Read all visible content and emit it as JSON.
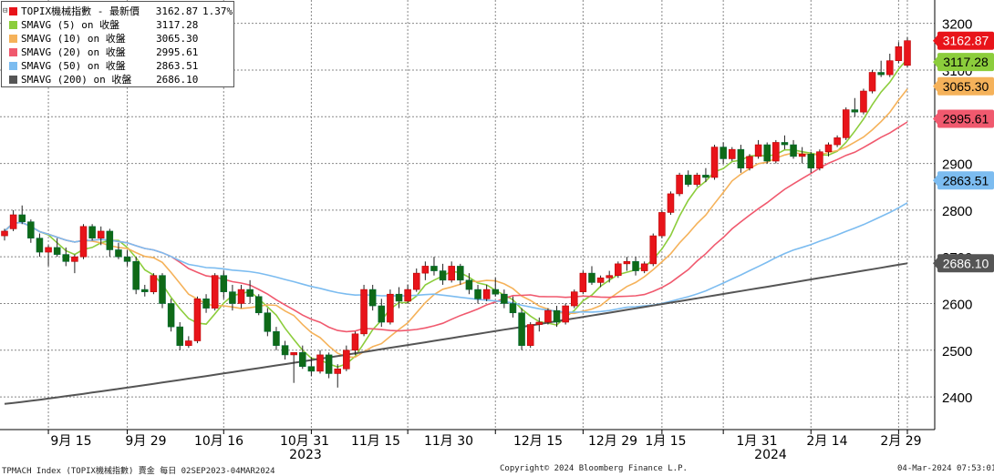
{
  "chart_data": {
    "type": "candlestick+line",
    "legend": [
      {
        "name": "TOPIX機械指數 - 最新價",
        "value": "3162.87",
        "change": "1.37%",
        "color": "#e8141a"
      },
      {
        "name": "SMAVG (5)  on 收盤",
        "value": "3117.28",
        "change": "",
        "color": "#8ccd3c"
      },
      {
        "name": "SMAVG (10)  on 收盤",
        "value": "3065.30",
        "change": "",
        "color": "#f5b25a"
      },
      {
        "name": "SMAVG (20)  on 收盤",
        "value": "2995.61",
        "change": "",
        "color": "#f0596e"
      },
      {
        "name": "SMAVG (50)  on 收盤",
        "value": "2863.51",
        "change": "",
        "color": "#7cbcf0"
      },
      {
        "name": "SMAVG (200)  on 收盤",
        "value": "2686.10",
        "change": "",
        "color": "#555555"
      }
    ],
    "ylim": [
      2330,
      3250
    ],
    "y_ticks": [
      2400,
      2500,
      2600,
      2700,
      2800,
      2900,
      3000,
      3100,
      3200
    ],
    "x_ticks": [
      "9月 15",
      "9月 29",
      "10月 16",
      "10月 31",
      "11月 15",
      "11月 30",
      "12月 15",
      "12月 29",
      "1月 15",
      "1月 31",
      "2月 14",
      "2月 29"
    ],
    "x_year_labels": [
      "2023",
      "2024"
    ],
    "grid": true,
    "right_labels": [
      {
        "value": "3162.87",
        "color": "#e8141a",
        "text_color": "#ffffff"
      },
      {
        "value": "3117.28",
        "color": "#8ccd3c",
        "text_color": "#000000"
      },
      {
        "value": "3065.30",
        "color": "#f5b25a",
        "text_color": "#000000"
      },
      {
        "value": "2995.61",
        "color": "#f0596e",
        "text_color": "#000000"
      },
      {
        "value": "2863.51",
        "color": "#7cbcf0",
        "text_color": "#000000"
      },
      {
        "value": "2686.10",
        "color": "#555555",
        "text_color": "#ffffff"
      }
    ],
    "candles": [
      [
        2745,
        2760,
        2735,
        2755
      ],
      [
        2760,
        2800,
        2755,
        2790
      ],
      [
        2790,
        2810,
        2770,
        2775
      ],
      [
        2775,
        2780,
        2730,
        2740
      ],
      [
        2740,
        2750,
        2700,
        2710
      ],
      [
        2710,
        2725,
        2680,
        2720
      ],
      [
        2720,
        2740,
        2700,
        2705
      ],
      [
        2705,
        2720,
        2680,
        2690
      ],
      [
        2690,
        2705,
        2665,
        2700
      ],
      [
        2700,
        2770,
        2695,
        2765
      ],
      [
        2765,
        2770,
        2735,
        2740
      ],
      [
        2740,
        2765,
        2725,
        2755
      ],
      [
        2755,
        2760,
        2700,
        2715
      ],
      [
        2715,
        2730,
        2695,
        2700
      ],
      [
        2700,
        2715,
        2680,
        2690
      ],
      [
        2690,
        2700,
        2620,
        2630
      ],
      [
        2630,
        2640,
        2615,
        2625
      ],
      [
        2625,
        2665,
        2620,
        2660
      ],
      [
        2660,
        2665,
        2590,
        2600
      ],
      [
        2600,
        2610,
        2540,
        2550
      ],
      [
        2550,
        2560,
        2500,
        2510
      ],
      [
        2510,
        2530,
        2505,
        2520
      ],
      [
        2520,
        2615,
        2515,
        2610
      ],
      [
        2610,
        2620,
        2580,
        2590
      ],
      [
        2590,
        2665,
        2585,
        2660
      ],
      [
        2660,
        2670,
        2610,
        2625
      ],
      [
        2625,
        2640,
        2585,
        2600
      ],
      [
        2600,
        2640,
        2590,
        2630
      ],
      [
        2630,
        2650,
        2600,
        2615
      ],
      [
        2615,
        2620,
        2575,
        2580
      ],
      [
        2580,
        2590,
        2530,
        2540
      ],
      [
        2540,
        2550,
        2500,
        2510
      ],
      [
        2510,
        2520,
        2480,
        2490
      ],
      [
        2490,
        2495,
        2430,
        2495
      ],
      [
        2495,
        2510,
        2460,
        2465
      ],
      [
        2465,
        2485,
        2445,
        2455
      ],
      [
        2455,
        2500,
        2450,
        2490
      ],
      [
        2490,
        2495,
        2440,
        2450
      ],
      [
        2450,
        2470,
        2420,
        2460
      ],
      [
        2460,
        2510,
        2455,
        2500
      ],
      [
        2500,
        2540,
        2490,
        2535
      ],
      [
        2535,
        2640,
        2530,
        2630
      ],
      [
        2630,
        2640,
        2585,
        2595
      ],
      [
        2595,
        2610,
        2550,
        2560
      ],
      [
        2560,
        2630,
        2555,
        2620
      ],
      [
        2620,
        2635,
        2590,
        2605
      ],
      [
        2605,
        2640,
        2600,
        2630
      ],
      [
        2630,
        2675,
        2625,
        2665
      ],
      [
        2665,
        2690,
        2650,
        2680
      ],
      [
        2680,
        2700,
        2660,
        2670
      ],
      [
        2670,
        2685,
        2640,
        2650
      ],
      [
        2650,
        2690,
        2645,
        2680
      ],
      [
        2680,
        2685,
        2640,
        2650
      ],
      [
        2650,
        2665,
        2620,
        2630
      ],
      [
        2630,
        2640,
        2600,
        2610
      ],
      [
        2610,
        2640,
        2605,
        2630
      ],
      [
        2630,
        2655,
        2615,
        2620
      ],
      [
        2620,
        2630,
        2590,
        2600
      ],
      [
        2600,
        2615,
        2570,
        2580
      ],
      [
        2580,
        2590,
        2500,
        2510
      ],
      [
        2510,
        2560,
        2505,
        2555
      ],
      [
        2555,
        2570,
        2540,
        2560
      ],
      [
        2560,
        2590,
        2555,
        2585
      ],
      [
        2585,
        2595,
        2550,
        2560
      ],
      [
        2560,
        2600,
        2555,
        2595
      ],
      [
        2595,
        2630,
        2590,
        2625
      ],
      [
        2625,
        2670,
        2620,
        2665
      ],
      [
        2665,
        2680,
        2640,
        2645
      ],
      [
        2645,
        2660,
        2635,
        2655
      ],
      [
        2655,
        2670,
        2645,
        2660
      ],
      [
        2660,
        2690,
        2655,
        2685
      ],
      [
        2685,
        2700,
        2670,
        2690
      ],
      [
        2690,
        2700,
        2660,
        2670
      ],
      [
        2670,
        2690,
        2665,
        2685
      ],
      [
        2685,
        2750,
        2680,
        2745
      ],
      [
        2745,
        2800,
        2740,
        2795
      ],
      [
        2795,
        2840,
        2790,
        2835
      ],
      [
        2835,
        2880,
        2830,
        2875
      ],
      [
        2875,
        2885,
        2850,
        2855
      ],
      [
        2855,
        2880,
        2850,
        2875
      ],
      [
        2875,
        2890,
        2860,
        2870
      ],
      [
        2870,
        2940,
        2865,
        2935
      ],
      [
        2935,
        2945,
        2900,
        2910
      ],
      [
        2910,
        2935,
        2905,
        2930
      ],
      [
        2930,
        2940,
        2880,
        2890
      ],
      [
        2890,
        2920,
        2885,
        2915
      ],
      [
        2915,
        2950,
        2910,
        2940
      ],
      [
        2940,
        2945,
        2900,
        2905
      ],
      [
        2905,
        2950,
        2900,
        2945
      ],
      [
        2945,
        2960,
        2930,
        2940
      ],
      [
        2940,
        2950,
        2910,
        2915
      ],
      [
        2915,
        2935,
        2900,
        2920
      ],
      [
        2920,
        2925,
        2880,
        2890
      ],
      [
        2890,
        2930,
        2885,
        2925
      ],
      [
        2925,
        2945,
        2915,
        2940
      ],
      [
        2940,
        2960,
        2935,
        2955
      ],
      [
        2955,
        3020,
        2950,
        3015
      ],
      [
        3015,
        3040,
        3000,
        3010
      ],
      [
        3010,
        3060,
        3005,
        3055
      ],
      [
        3055,
        3100,
        3050,
        3095
      ],
      [
        3095,
        3120,
        3085,
        3090
      ],
      [
        3090,
        3135,
        3085,
        3120
      ],
      [
        3120,
        3160,
        3115,
        3150
      ],
      [
        3110,
        3170,
        3105,
        3162.87
      ]
    ]
  },
  "footer": {
    "left": "TPMACH Index (TOPIX機械指數) 賣金  每日 02SEP2023-04MAR2024",
    "center": "Copyright© 2024 Bloomberg Finance L.P.",
    "right": "04-Mar-2024 07:53:01"
  }
}
